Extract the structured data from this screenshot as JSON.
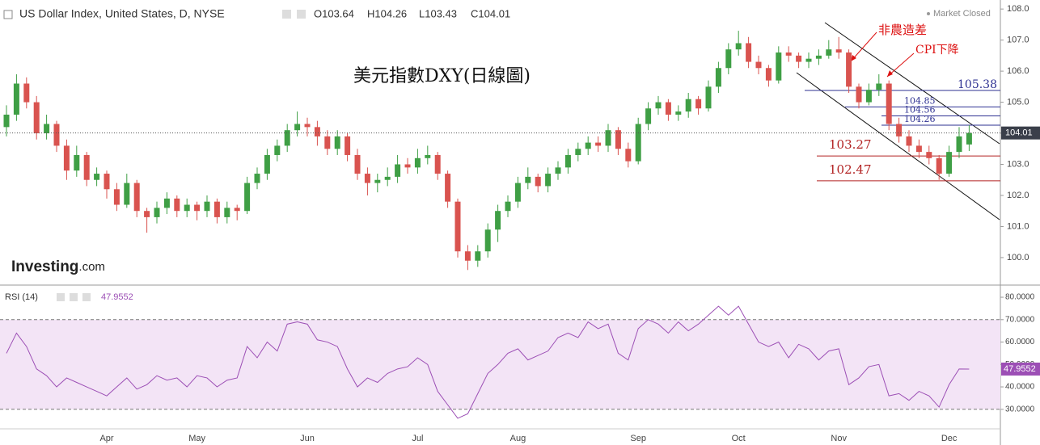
{
  "header": {
    "symbol": "US Dollar Index, United States, D, NYSE",
    "open": "O103.64",
    "high": "H104.26",
    "low": "L103.43",
    "close": "C104.01",
    "status": "Market Closed",
    "logo": "Investing",
    "logo_suffix": ".com"
  },
  "chart_data": [
    {
      "type": "candlestick",
      "title": "美元指數DXY(日線圖)",
      "up_color": "#3f9f45",
      "down_color": "#d9534f",
      "annotations": [
        "非農造差",
        "CPI下降"
      ],
      "ylim": [
        99.14,
        108.29
      ],
      "yticks": [
        {
          "value": 100,
          "label": "100.0"
        },
        {
          "value": 101,
          "label": "101.0"
        },
        {
          "value": 102,
          "label": "102.0"
        },
        {
          "value": 103,
          "label": "103.0"
        },
        {
          "value": 104,
          "label": "104.0"
        },
        {
          "value": 105,
          "label": "105.0"
        },
        {
          "value": 106,
          "label": "106.0"
        },
        {
          "value": 107,
          "label": "107.0"
        },
        {
          "value": 108,
          "label": "108.0"
        }
      ],
      "levels": [
        {
          "value": 105.38,
          "color": "#2e3192"
        },
        {
          "value": 104.85,
          "color": "#2e3192"
        },
        {
          "value": 104.56,
          "color": "#2e3192"
        },
        {
          "value": 104.26,
          "color": "#2e3192"
        },
        {
          "value": 103.27,
          "color": "#b22222"
        },
        {
          "value": 102.47,
          "color": "#b22222"
        }
      ],
      "categories": [
        null,
        null,
        null,
        null,
        null,
        null,
        null,
        null,
        null,
        null,
        "Apr",
        null,
        null,
        null,
        null,
        null,
        null,
        null,
        null,
        "May",
        null,
        null,
        null,
        null,
        null,
        null,
        null,
        null,
        null,
        null,
        "Jun",
        null,
        null,
        null,
        null,
        null,
        null,
        null,
        null,
        null,
        null,
        "Jul",
        null,
        null,
        null,
        null,
        null,
        null,
        null,
        null,
        null,
        "Aug",
        null,
        null,
        null,
        null,
        null,
        null,
        null,
        null,
        null,
        null,
        null,
        "Sep",
        null,
        null,
        null,
        null,
        null,
        null,
        null,
        null,
        null,
        "Oct",
        null,
        null,
        null,
        null,
        null,
        null,
        null,
        null,
        null,
        "Nov",
        null,
        null,
        null,
        null,
        null,
        null,
        null,
        null,
        null,
        null,
        "Dec",
        null,
        null
      ],
      "ohlc": [
        [
          104.2,
          104.9,
          103.9,
          104.6
        ],
        [
          104.6,
          105.9,
          104.4,
          105.6
        ],
        [
          105.6,
          105.8,
          104.8,
          105.0
        ],
        [
          105.0,
          105.2,
          103.8,
          104.0
        ],
        [
          104.0,
          104.6,
          103.8,
          104.3
        ],
        [
          104.3,
          104.4,
          103.4,
          103.6
        ],
        [
          103.6,
          103.8,
          102.5,
          102.8
        ],
        [
          102.8,
          103.6,
          102.6,
          103.3
        ],
        [
          103.3,
          103.4,
          102.3,
          102.5
        ],
        [
          102.5,
          102.9,
          102.3,
          102.7
        ],
        [
          102.7,
          102.8,
          101.9,
          102.2
        ],
        [
          102.2,
          102.4,
          101.5,
          101.7
        ],
        [
          101.7,
          102.7,
          101.6,
          102.4
        ],
        [
          102.4,
          102.5,
          101.3,
          101.5
        ],
        [
          101.5,
          101.6,
          100.8,
          101.3
        ],
        [
          101.3,
          101.8,
          101.1,
          101.6
        ],
        [
          101.6,
          102.1,
          101.4,
          101.9
        ],
        [
          101.9,
          102.0,
          101.3,
          101.5
        ],
        [
          101.5,
          101.9,
          101.3,
          101.7
        ],
        [
          101.7,
          101.8,
          101.2,
          101.5
        ],
        [
          101.5,
          102.0,
          101.3,
          101.8
        ],
        [
          101.8,
          101.9,
          101.1,
          101.3
        ],
        [
          101.3,
          101.8,
          101.1,
          101.6
        ],
        [
          101.6,
          101.7,
          101.2,
          101.5
        ],
        [
          101.5,
          102.6,
          101.4,
          102.4
        ],
        [
          102.4,
          102.9,
          102.2,
          102.7
        ],
        [
          102.7,
          103.5,
          102.5,
          103.3
        ],
        [
          103.3,
          103.8,
          103.1,
          103.6
        ],
        [
          103.6,
          104.3,
          103.4,
          104.1
        ],
        [
          104.1,
          104.7,
          103.9,
          104.3
        ],
        [
          104.3,
          104.5,
          103.9,
          104.2
        ],
        [
          104.2,
          104.4,
          103.6,
          103.9
        ],
        [
          103.9,
          104.1,
          103.3,
          103.5
        ],
        [
          103.5,
          104.1,
          103.3,
          103.9
        ],
        [
          103.9,
          104.0,
          103.1,
          103.3
        ],
        [
          103.3,
          103.5,
          102.5,
          102.7
        ],
        [
          102.7,
          102.9,
          102.0,
          102.4
        ],
        [
          102.4,
          102.7,
          102.1,
          102.5
        ],
        [
          102.5,
          102.9,
          102.3,
          102.6
        ],
        [
          102.6,
          103.3,
          102.4,
          103.0
        ],
        [
          103.0,
          103.2,
          102.7,
          102.9
        ],
        [
          102.9,
          103.5,
          102.7,
          103.2
        ],
        [
          103.2,
          103.6,
          103.0,
          103.3
        ],
        [
          103.3,
          103.4,
          102.5,
          102.7
        ],
        [
          102.7,
          102.8,
          101.6,
          101.8
        ],
        [
          101.8,
          101.9,
          100.0,
          100.2
        ],
        [
          100.2,
          100.4,
          99.6,
          99.9
        ],
        [
          99.9,
          100.4,
          99.7,
          100.2
        ],
        [
          100.2,
          101.1,
          100.0,
          100.9
        ],
        [
          100.9,
          101.7,
          100.5,
          101.5
        ],
        [
          101.5,
          102.0,
          101.3,
          101.8
        ],
        [
          101.8,
          102.6,
          101.6,
          102.4
        ],
        [
          102.4,
          102.9,
          102.2,
          102.6
        ],
        [
          102.6,
          102.7,
          102.1,
          102.3
        ],
        [
          102.3,
          102.9,
          102.1,
          102.7
        ],
        [
          102.7,
          103.1,
          102.5,
          102.9
        ],
        [
          102.9,
          103.5,
          102.7,
          103.3
        ],
        [
          103.3,
          103.7,
          103.1,
          103.5
        ],
        [
          103.5,
          103.9,
          103.3,
          103.7
        ],
        [
          103.7,
          103.9,
          103.4,
          103.6
        ],
        [
          103.6,
          104.3,
          103.4,
          104.1
        ],
        [
          104.1,
          104.2,
          103.3,
          103.5
        ],
        [
          103.5,
          103.7,
          102.9,
          103.1
        ],
        [
          103.1,
          104.5,
          103.0,
          104.3
        ],
        [
          104.3,
          105.0,
          104.1,
          104.8
        ],
        [
          104.8,
          105.2,
          104.6,
          105.0
        ],
        [
          105.0,
          105.1,
          104.4,
          104.6
        ],
        [
          104.6,
          104.9,
          104.4,
          104.7
        ],
        [
          104.7,
          105.3,
          104.5,
          105.1
        ],
        [
          105.1,
          105.2,
          104.6,
          104.8
        ],
        [
          104.8,
          105.7,
          104.7,
          105.5
        ],
        [
          105.5,
          106.3,
          105.3,
          106.1
        ],
        [
          106.1,
          106.9,
          105.9,
          106.7
        ],
        [
          106.7,
          107.3,
          106.5,
          106.9
        ],
        [
          106.9,
          107.1,
          106.1,
          106.3
        ],
        [
          106.3,
          106.5,
          105.9,
          106.1
        ],
        [
          106.1,
          106.2,
          105.5,
          105.7
        ],
        [
          105.7,
          106.8,
          105.6,
          106.6
        ],
        [
          106.6,
          106.8,
          106.3,
          106.5
        ],
        [
          106.5,
          106.6,
          106.1,
          106.3
        ],
        [
          106.3,
          106.6,
          106.1,
          106.4
        ],
        [
          106.4,
          106.7,
          106.2,
          106.5
        ],
        [
          106.5,
          107.0,
          106.4,
          106.7
        ],
        [
          106.7,
          107.1,
          106.4,
          106.6
        ],
        [
          106.6,
          106.7,
          105.3,
          105.5
        ],
        [
          105.5,
          105.6,
          104.8,
          105.0
        ],
        [
          105.0,
          105.6,
          104.9,
          105.4
        ],
        [
          105.4,
          105.9,
          105.2,
          105.6
        ],
        [
          105.6,
          105.7,
          104.1,
          104.3
        ],
        [
          104.3,
          104.5,
          103.7,
          103.9
        ],
        [
          103.9,
          104.1,
          103.4,
          103.6
        ],
        [
          103.6,
          103.8,
          103.2,
          103.4
        ],
        [
          103.4,
          103.6,
          103.0,
          103.2
        ],
        [
          103.2,
          103.3,
          102.5,
          102.7
        ],
        [
          102.7,
          103.6,
          102.6,
          103.4
        ],
        [
          103.4,
          104.2,
          103.2,
          103.9
        ],
        [
          103.64,
          104.26,
          103.43,
          104.01
        ]
      ]
    },
    {
      "type": "line",
      "title": "RSI (14)",
      "color": "#9c4fb5",
      "band_color": "#f3e4f6",
      "overbought": 70,
      "oversold": 30,
      "ylim": [
        22,
        84.7
      ],
      "yticks": [
        {
          "value": 30,
          "label": "30.0000"
        },
        {
          "value": 40,
          "label": "40.0000"
        },
        {
          "value": 50,
          "label": "50.0000"
        },
        {
          "value": 60,
          "label": "60.0000"
        },
        {
          "value": 70,
          "label": "70.0000"
        },
        {
          "value": 80,
          "label": "80.0000"
        }
      ],
      "values": [
        55,
        64,
        58,
        48,
        45,
        40,
        44,
        42,
        40,
        38,
        36,
        40,
        44,
        39,
        41,
        45,
        43,
        44,
        40,
        45,
        44,
        40,
        43,
        44,
        58,
        53,
        60,
        56,
        68,
        69,
        68,
        61,
        60,
        58,
        48,
        40,
        44,
        42,
        46,
        48,
        49,
        53,
        50,
        38,
        32,
        26,
        28,
        37,
        46,
        50,
        55,
        57,
        52,
        54,
        56,
        62,
        64,
        62,
        69,
        66,
        68,
        55,
        52,
        66,
        70,
        68,
        64,
        69,
        65,
        68,
        72,
        76,
        72,
        76,
        68,
        60,
        58,
        60,
        53,
        59,
        57,
        52,
        56,
        57,
        41,
        44,
        49,
        50,
        36,
        37,
        34,
        38,
        36,
        31,
        41,
        48,
        47.9552
      ]
    }
  ]
}
